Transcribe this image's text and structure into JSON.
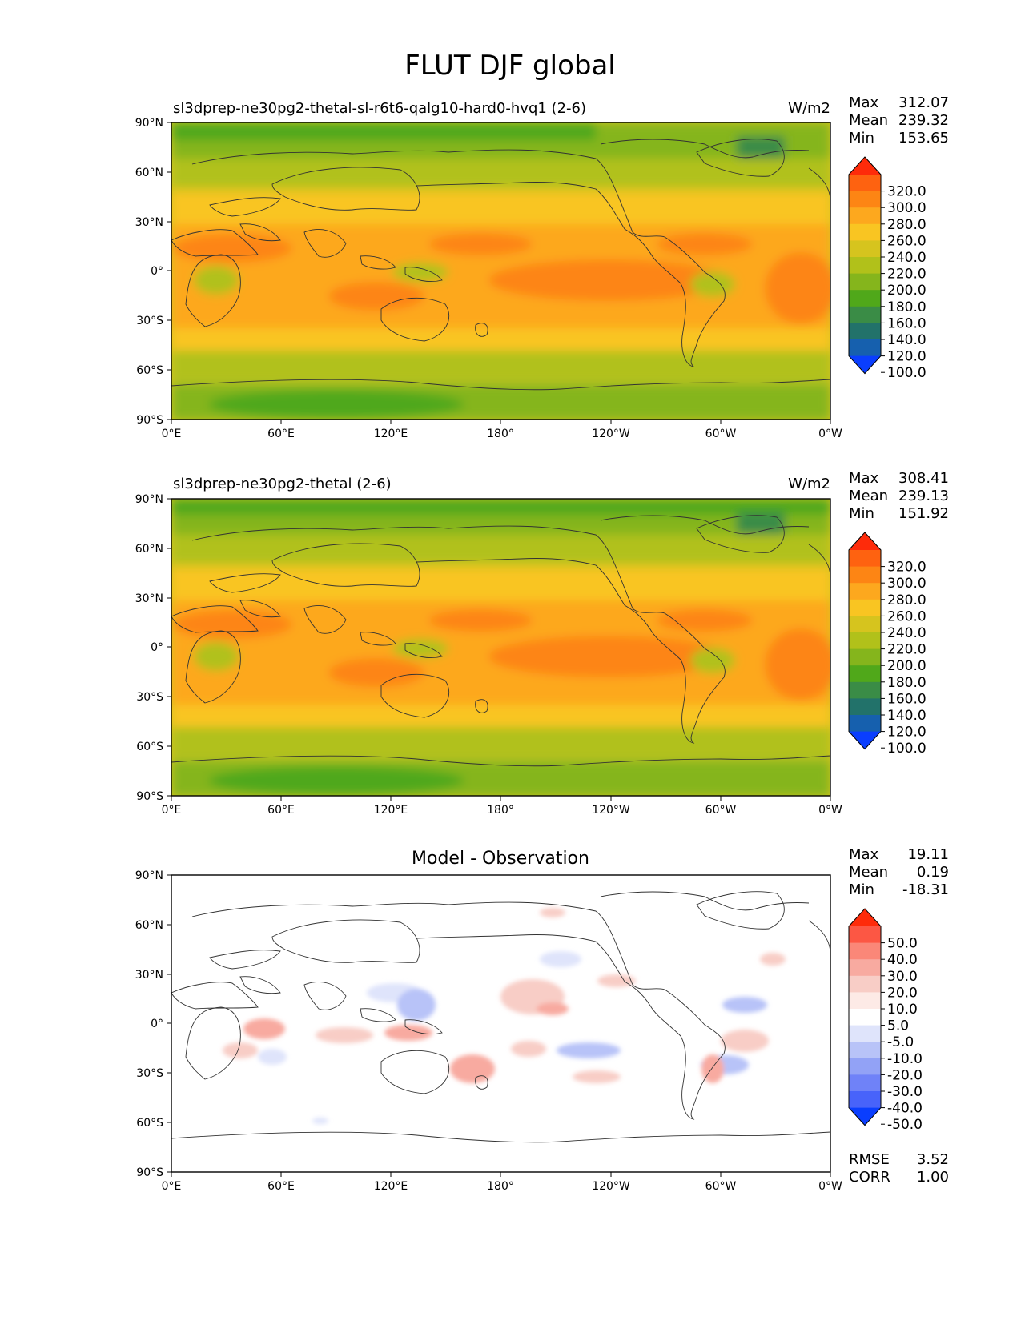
{
  "title": "FLUT DJF global",
  "lat_ticks": [
    "90°N",
    "60°N",
    "30°N",
    "0°",
    "30°S",
    "60°S",
    "90°S"
  ],
  "lon_ticks": [
    "0°E",
    "60°E",
    "120°E",
    "180°",
    "120°W",
    "60°W",
    "0°W"
  ],
  "panels": [
    {
      "title": "sl3dprep-ne30pg2-thetal-sl-r6t6-qalg10-hard0-hvq1 (2-6)",
      "center_title": "",
      "units": "W/m2",
      "stats": [
        {
          "label": "Max",
          "value": "312.07"
        },
        {
          "label": "Mean",
          "value": "239.32"
        },
        {
          "label": "Min",
          "value": "153.65"
        }
      ],
      "colorbar": {
        "labels": [
          "320.0",
          "300.0",
          "280.0",
          "260.0",
          "240.0",
          "220.0",
          "200.0",
          "180.0",
          "160.0",
          "140.0",
          "120.0",
          "100.0"
        ],
        "colors": [
          "#fe2b0a",
          "#fe6210",
          "#fd8514",
          "#fda81e",
          "#f9c522",
          "#d6c41e",
          "#b1c11a",
          "#85b51c",
          "#50a81a",
          "#3a8c46",
          "#22726a",
          "#1660ae",
          "#0a3efe"
        ]
      }
    },
    {
      "title": "sl3dprep-ne30pg2-thetal (2-6)",
      "center_title": "",
      "units": "W/m2",
      "stats": [
        {
          "label": "Max",
          "value": "308.41"
        },
        {
          "label": "Mean",
          "value": "239.13"
        },
        {
          "label": "Min",
          "value": "151.92"
        }
      ],
      "colorbar": {
        "labels": [
          "320.0",
          "300.0",
          "280.0",
          "260.0",
          "240.0",
          "220.0",
          "200.0",
          "180.0",
          "160.0",
          "140.0",
          "120.0",
          "100.0"
        ],
        "colors": [
          "#fe2b0a",
          "#fe6210",
          "#fd8514",
          "#fda81e",
          "#f9c522",
          "#d6c41e",
          "#b1c11a",
          "#85b51c",
          "#50a81a",
          "#3a8c46",
          "#22726a",
          "#1660ae",
          "#0a3efe"
        ]
      }
    },
    {
      "title": "",
      "center_title": "Model - Observation",
      "units": "",
      "stats": [
        {
          "label": "Max",
          "value": "19.11"
        },
        {
          "label": "Mean",
          "value": "0.19"
        },
        {
          "label": "Min",
          "value": "-18.31"
        }
      ],
      "colorbar": {
        "labels": [
          "50.0",
          "40.0",
          "30.0",
          "20.0",
          "10.0",
          "5.0",
          "-5.0",
          "-10.0",
          "-20.0",
          "-30.0",
          "-40.0",
          "-50.0"
        ],
        "colors": [
          "#fe2b0a",
          "#fc5744",
          "#fa8778",
          "#f8aaa0",
          "#f8cdc6",
          "#fdeae6",
          "#ffffff",
          "#dfe4fb",
          "#b8c3f8",
          "#92a2f6",
          "#6f82f8",
          "#4863fa",
          "#0a3efe"
        ]
      },
      "footer_stats": [
        {
          "label": "RMSE",
          "value": "3.52"
        },
        {
          "label": "CORR",
          "value": "1.00"
        }
      ]
    }
  ],
  "map_data": {
    "projection": "equirectangular",
    "center_longitude": 180,
    "variable": "FLUT",
    "season": "DJF",
    "region": "global",
    "panel_fields": [
      "outgoing longwave flux, test model",
      "outgoing longwave flux, reference",
      "difference model minus observation"
    ],
    "features": [
      "coastlines"
    ]
  }
}
